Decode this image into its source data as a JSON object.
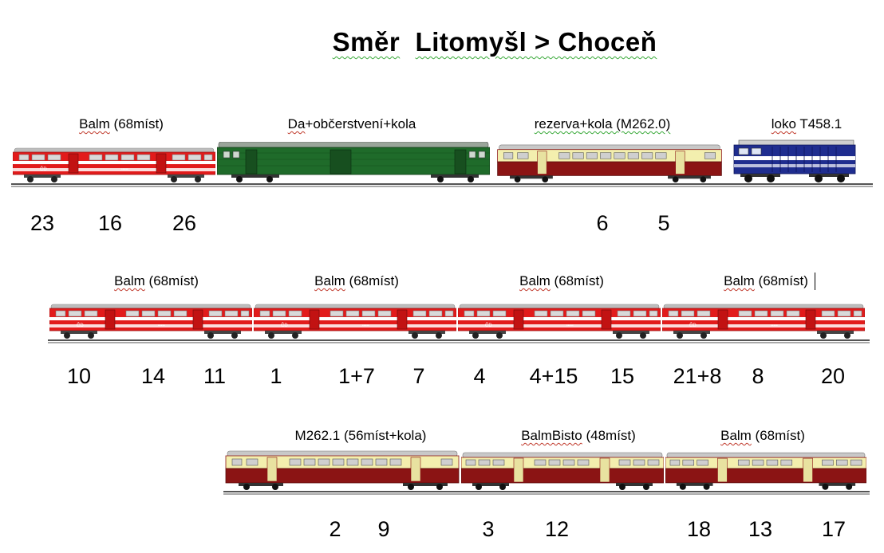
{
  "title": {
    "part1": "Směr",
    "part2": "Litomyšl > Choceň"
  },
  "row1": {
    "labels": [
      {
        "prefix": "",
        "word": "Balm",
        "rest": " (68míst)"
      },
      {
        "prefix": "",
        "word": "Da",
        "rest": "+občerstvení+kola"
      },
      {
        "prefix": "",
        "word": "rezerva",
        "rest": "+kola (M262.0)"
      },
      {
        "prefix": "",
        "word": "loko",
        "rest": " T458.1"
      }
    ],
    "numbers": [
      "23",
      "16",
      "26",
      "6",
      "5"
    ]
  },
  "row2": {
    "labels": [
      {
        "word": "Balm",
        "rest": " (68míst)"
      },
      {
        "word": "Balm",
        "rest": " (68míst)"
      },
      {
        "word": "Balm",
        "rest": " (68míst)"
      },
      {
        "word": "Balm",
        "rest": " (68míst)"
      }
    ],
    "numbers": [
      "10",
      "14",
      "11",
      "1",
      "1+7",
      "7",
      "4",
      "4+15",
      "15",
      "21+8",
      "8",
      "20"
    ]
  },
  "row3": {
    "labels": [
      {
        "word": "M262.1",
        "rest": " (56míst+kola)"
      },
      {
        "word": "BalmBisto",
        "rest": " (48míst)"
      },
      {
        "word": "Balm",
        "rest": " (68míst)"
      }
    ],
    "numbers": [
      "2",
      "9",
      "3",
      "12",
      "18",
      "13",
      "17"
    ]
  },
  "colors": {
    "balm_red": "#e21b1b",
    "balm_roof": "#bdbdbd",
    "da_green": "#1f6b2a",
    "motor_cream": "#f3efae",
    "motor_maroon": "#8b1414",
    "loco_blue": "#1f2d8f",
    "loco_white": "#ffffff"
  }
}
